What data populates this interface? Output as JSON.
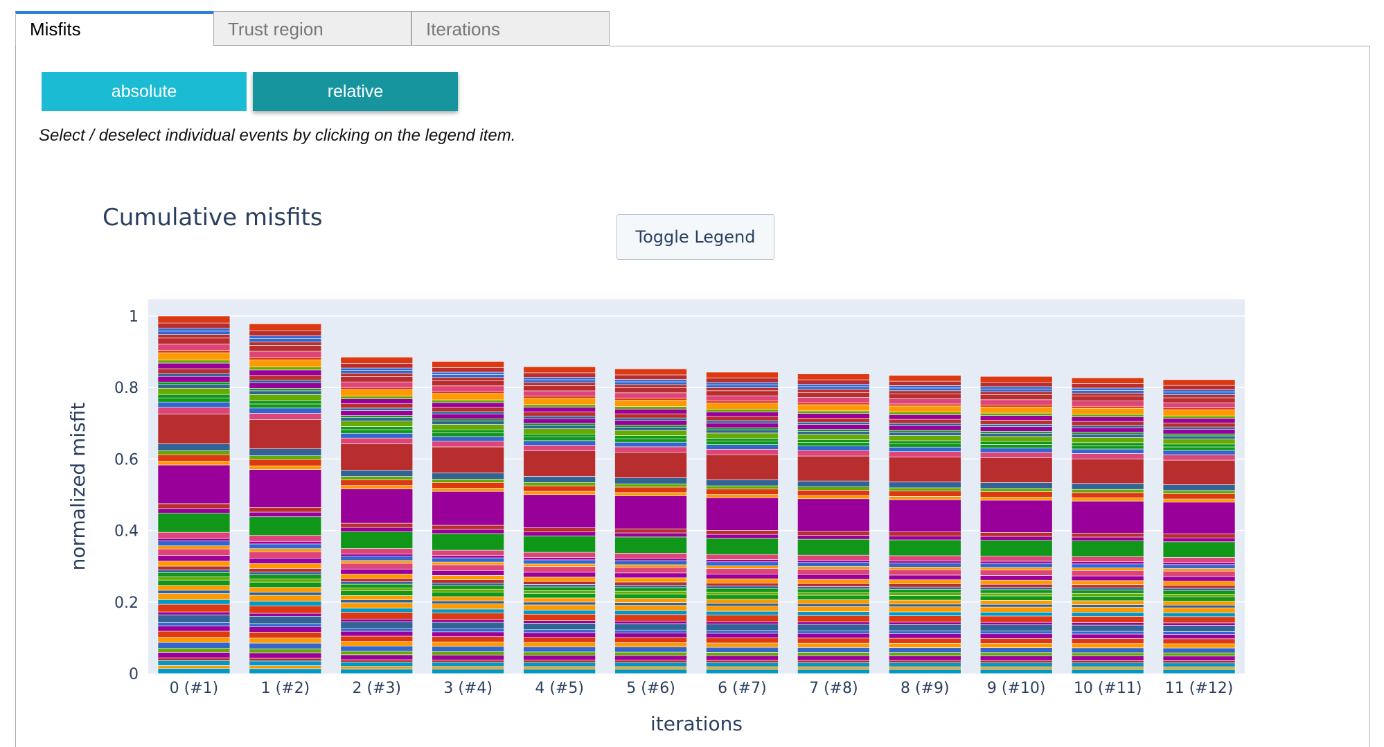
{
  "tabs": [
    {
      "label": "Misfits",
      "active": true
    },
    {
      "label": "Trust region",
      "active": false
    },
    {
      "label": "Iterations",
      "active": false
    }
  ],
  "buttons": {
    "absolute": "absolute",
    "relative": "relative"
  },
  "hint": "Select / deselect individual events by clicking on the legend item.",
  "toggle_legend": "Toggle Legend",
  "colors": {
    "tab_accent": "#2f7fd6",
    "btn_absolute": "#1bbbd4",
    "btn_relative": "#17959f",
    "plot_bg": "#e5ecf6",
    "text": "#2a3f5f"
  },
  "chart_data": {
    "type": "bar",
    "barmode": "stack",
    "title": "Cumulative misfits",
    "xlabel": "iterations",
    "ylabel": "normalized misfit",
    "ylim": [
      0,
      1.0
    ],
    "yticks": [
      0,
      0.2,
      0.4,
      0.6,
      0.8,
      1
    ],
    "ytick_labels": [
      "0",
      "0.2",
      "0.4",
      "0.6",
      "0.8",
      "1"
    ],
    "grid": true,
    "categories": [
      "0 (#1)",
      "1 (#2)",
      "2 (#3)",
      "3 (#4)",
      "4 (#5)",
      "5 (#6)",
      "6 (#7)",
      "7 (#8)",
      "8 (#9)",
      "9 (#10)",
      "10 (#11)",
      "11 (#12)"
    ],
    "totals": [
      1.0,
      0.978,
      0.885,
      0.873,
      0.858,
      0.852,
      0.843,
      0.838,
      0.834,
      0.831,
      0.827,
      0.822
    ],
    "series_palette": [
      "#3366cc",
      "#dc3912",
      "#ff9900",
      "#109618",
      "#990099",
      "#0099c6",
      "#dd4477",
      "#66aa00",
      "#b82e2e",
      "#316395"
    ]
  }
}
